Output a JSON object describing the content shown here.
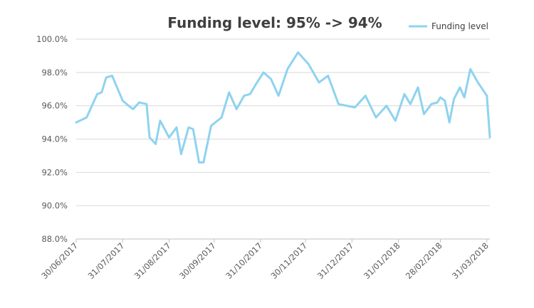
{
  "chart_data": {
    "type": "line",
    "title": "Funding level: 95% -> 94%",
    "xlabel": "",
    "ylabel": "",
    "ylim": [
      88.0,
      100.0
    ],
    "y_ticks": [
      "88.0%",
      "90.0%",
      "92.0%",
      "94.0%",
      "96.0%",
      "98.0%",
      "100.0%"
    ],
    "x_ticks": [
      "30/06/2017",
      "31/07/2017",
      "31/08/2017",
      "30/09/2017",
      "31/10/2017",
      "30/11/2017",
      "31/12/2017",
      "31/01/2018",
      "28/02/2018",
      "31/03/2018"
    ],
    "grid": "horizontal",
    "legend_position": "top-right",
    "colors": {
      "series": "#8ed3ef"
    },
    "series": [
      {
        "name": "Funding level",
        "x": [
          "30/06/2017",
          "07/07/2017",
          "14/07/2017",
          "17/07/2017",
          "20/07/2017",
          "24/07/2017",
          "31/07/2017",
          "04/08/2017",
          "07/08/2017",
          "11/08/2017",
          "16/08/2017",
          "18/08/2017",
          "22/08/2017",
          "25/08/2017",
          "31/08/2017",
          "05/09/2017",
          "08/09/2017",
          "13/09/2017",
          "16/09/2017",
          "20/09/2017",
          "23/09/2017",
          "28/09/2017",
          "05/10/2017",
          "10/10/2017",
          "15/10/2017",
          "20/10/2017",
          "24/10/2017",
          "28/10/2017",
          "02/11/2017",
          "07/11/2017",
          "12/11/2017",
          "18/11/2017",
          "25/11/2017",
          "02/12/2017",
          "09/12/2017",
          "15/12/2017",
          "22/12/2017",
          "02/01/2018",
          "09/01/2018",
          "16/01/2018",
          "23/01/2018",
          "29/01/2018",
          "04/02/2018",
          "08/02/2018",
          "13/02/2018",
          "17/02/2018",
          "22/02/2018",
          "26/02/2018",
          "28/02/2018",
          "03/03/2018",
          "06/03/2018",
          "09/03/2018",
          "13/03/2018",
          "16/03/2018",
          "20/03/2018",
          "25/03/2018",
          "31/03/2018",
          "02/04/2018"
        ],
        "values": [
          95.0,
          95.3,
          96.7,
          96.8,
          97.7,
          97.8,
          96.3,
          96.0,
          95.8,
          96.2,
          96.1,
          94.1,
          93.7,
          95.1,
          94.1,
          94.7,
          93.1,
          94.7,
          94.6,
          92.6,
          92.6,
          94.8,
          95.3,
          96.8,
          95.8,
          96.6,
          96.7,
          97.3,
          98.0,
          97.6,
          96.6,
          98.2,
          99.2,
          98.5,
          97.4,
          97.8,
          96.1,
          95.9,
          96.6,
          95.3,
          96.0,
          95.1,
          96.7,
          96.1,
          97.1,
          95.5,
          96.1,
          96.2,
          96.5,
          96.3,
          95.0,
          96.4,
          97.1,
          96.5,
          98.2,
          97.4,
          96.6,
          94.1
        ]
      }
    ]
  }
}
